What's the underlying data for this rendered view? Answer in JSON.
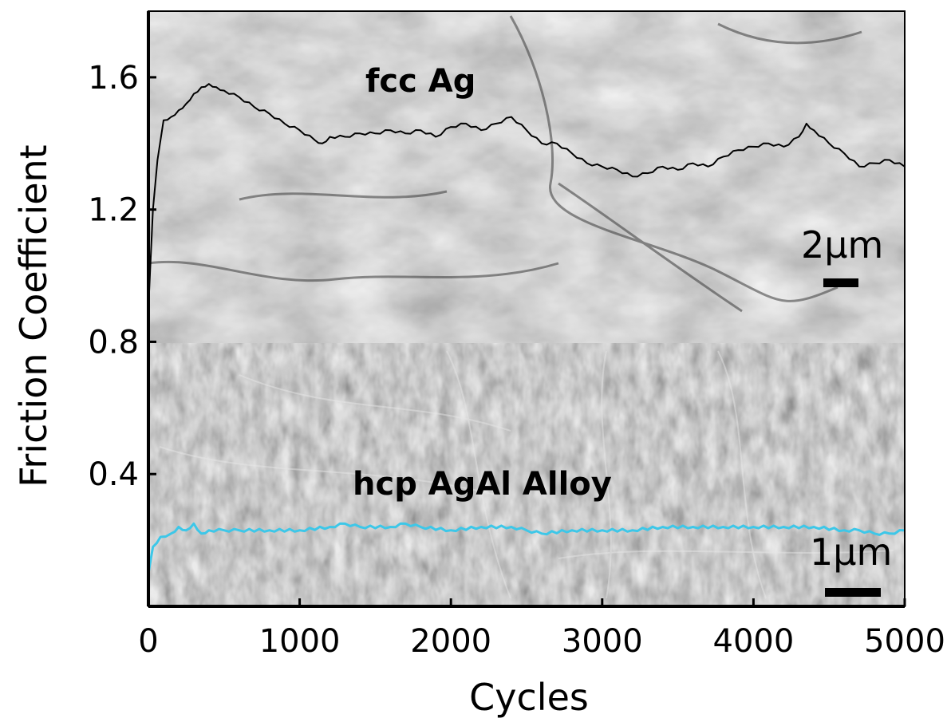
{
  "chart_data": {
    "type": "line",
    "xlabel": "Cycles",
    "ylabel": "Friction Coefficient",
    "xlim": [
      0,
      5000
    ],
    "ylim": [
      0,
      1.8
    ],
    "x_ticks": [
      "0",
      "1000",
      "2000",
      "3000",
      "4000",
      "5000"
    ],
    "y_ticks": [
      "0.4",
      "0.8",
      "1.2",
      "1.6"
    ],
    "x_tick_values": [
      0,
      1000,
      2000,
      3000,
      4000,
      5000
    ],
    "y_tick_values": [
      0.4,
      0.8,
      1.2,
      1.6
    ],
    "grid": false,
    "series": [
      {
        "color": "#000000",
        "x": [
          0,
          30,
          60,
          100,
          150,
          200,
          250,
          300,
          350,
          400,
          450,
          500,
          600,
          700,
          800,
          900,
          1000,
          1100,
          1150,
          1200,
          1300,
          1400,
          1500,
          1600,
          1700,
          1800,
          1900,
          2000,
          2100,
          2200,
          2300,
          2400,
          2500,
          2600,
          2700,
          2800,
          2900,
          3000,
          3100,
          3200,
          3300,
          3400,
          3500,
          3600,
          3700,
          3800,
          3900,
          4000,
          4100,
          4200,
          4300,
          4350,
          4400,
          4500,
          4600,
          4700,
          4800,
          4900,
          5000
        ],
        "y": [
          0.9,
          1.2,
          1.35,
          1.47,
          1.48,
          1.5,
          1.52,
          1.55,
          1.57,
          1.58,
          1.57,
          1.56,
          1.54,
          1.51,
          1.49,
          1.46,
          1.44,
          1.41,
          1.4,
          1.42,
          1.42,
          1.43,
          1.43,
          1.44,
          1.43,
          1.44,
          1.42,
          1.45,
          1.46,
          1.44,
          1.46,
          1.48,
          1.44,
          1.4,
          1.4,
          1.37,
          1.34,
          1.33,
          1.32,
          1.3,
          1.31,
          1.33,
          1.32,
          1.34,
          1.33,
          1.36,
          1.38,
          1.39,
          1.4,
          1.39,
          1.42,
          1.46,
          1.44,
          1.4,
          1.37,
          1.33,
          1.34,
          1.35,
          1.33
        ]
      },
      {
        "color": "#3dc7e8",
        "x": [
          0,
          30,
          80,
          150,
          200,
          250,
          300,
          350,
          400,
          500,
          600,
          800,
          1000,
          1200,
          1300,
          1400,
          1600,
          1700,
          1800,
          2000,
          2200,
          2400,
          2500,
          2600,
          2800,
          3000,
          3200,
          3400,
          3600,
          3800,
          4000,
          4200,
          4400,
          4600,
          4700,
          4800,
          4900,
          5000
        ],
        "y": [
          0.1,
          0.18,
          0.21,
          0.22,
          0.24,
          0.23,
          0.25,
          0.22,
          0.23,
          0.23,
          0.23,
          0.23,
          0.23,
          0.24,
          0.25,
          0.24,
          0.24,
          0.25,
          0.24,
          0.23,
          0.24,
          0.24,
          0.23,
          0.22,
          0.23,
          0.23,
          0.23,
          0.24,
          0.24,
          0.24,
          0.24,
          0.24,
          0.24,
          0.23,
          0.23,
          0.22,
          0.22,
          0.23
        ]
      }
    ],
    "annotations": {
      "top_label": "fcc Ag",
      "bottom_label": "hcp AgAl Alloy",
      "top_scale": "2μm",
      "bottom_scale": "1μm"
    },
    "colors": {
      "top_image_base": "#a9a9a9",
      "bottom_image_base": "#7d7d7d"
    }
  }
}
